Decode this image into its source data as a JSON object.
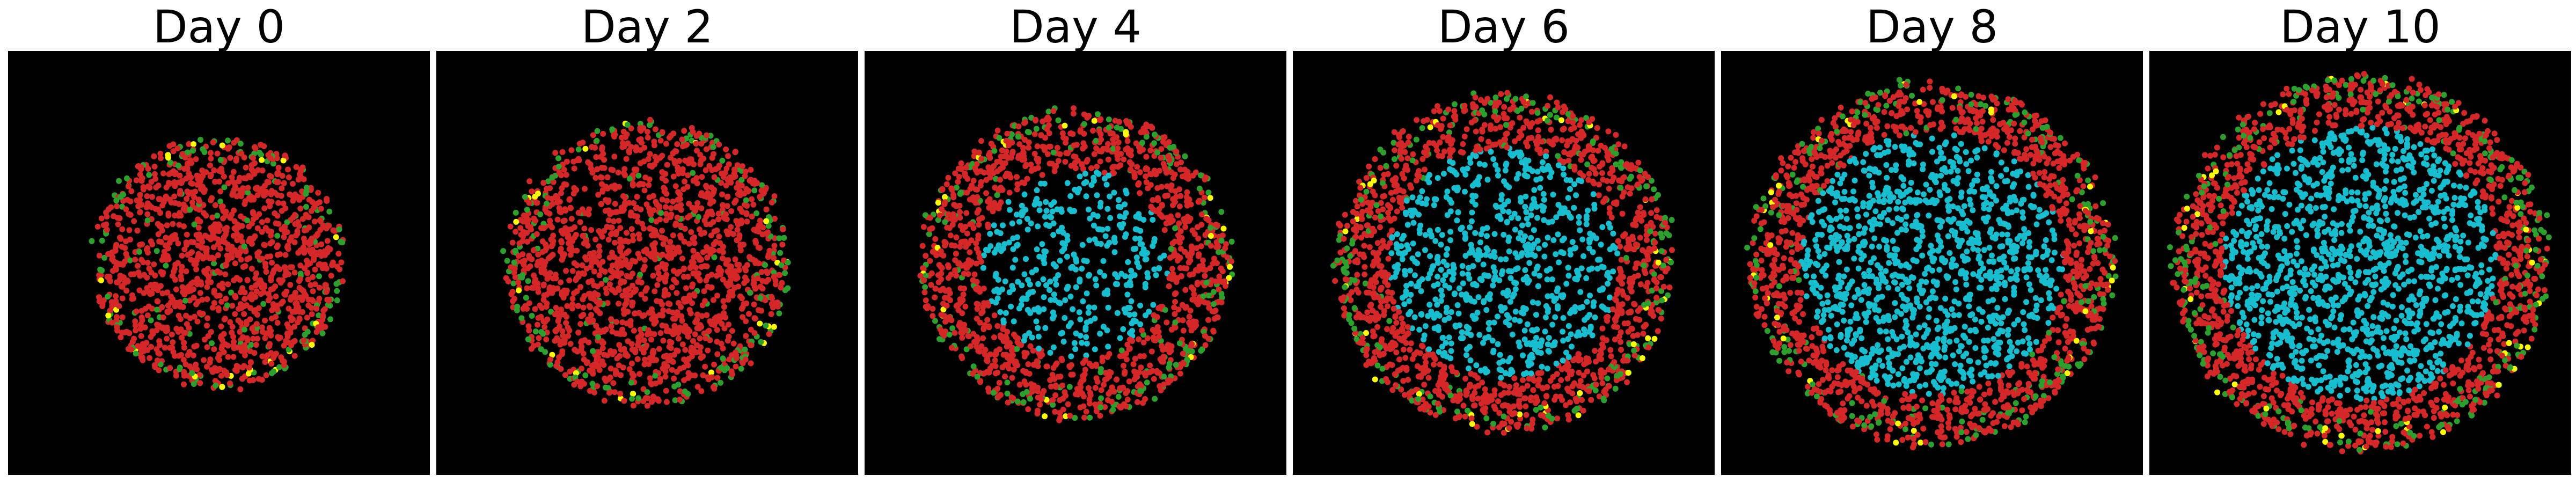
{
  "colors": {
    "background": "#000000",
    "red": "#d62728",
    "green": "#2ca02c",
    "yellow": "#ffff00",
    "cyan": "#17becf"
  },
  "panels": [
    {
      "title": "Day 0"
    },
    {
      "title": "Day 2"
    },
    {
      "title": "Day 4"
    },
    {
      "title": "Day 6"
    },
    {
      "title": "Day 8"
    },
    {
      "title": "Day 10"
    }
  ]
}
